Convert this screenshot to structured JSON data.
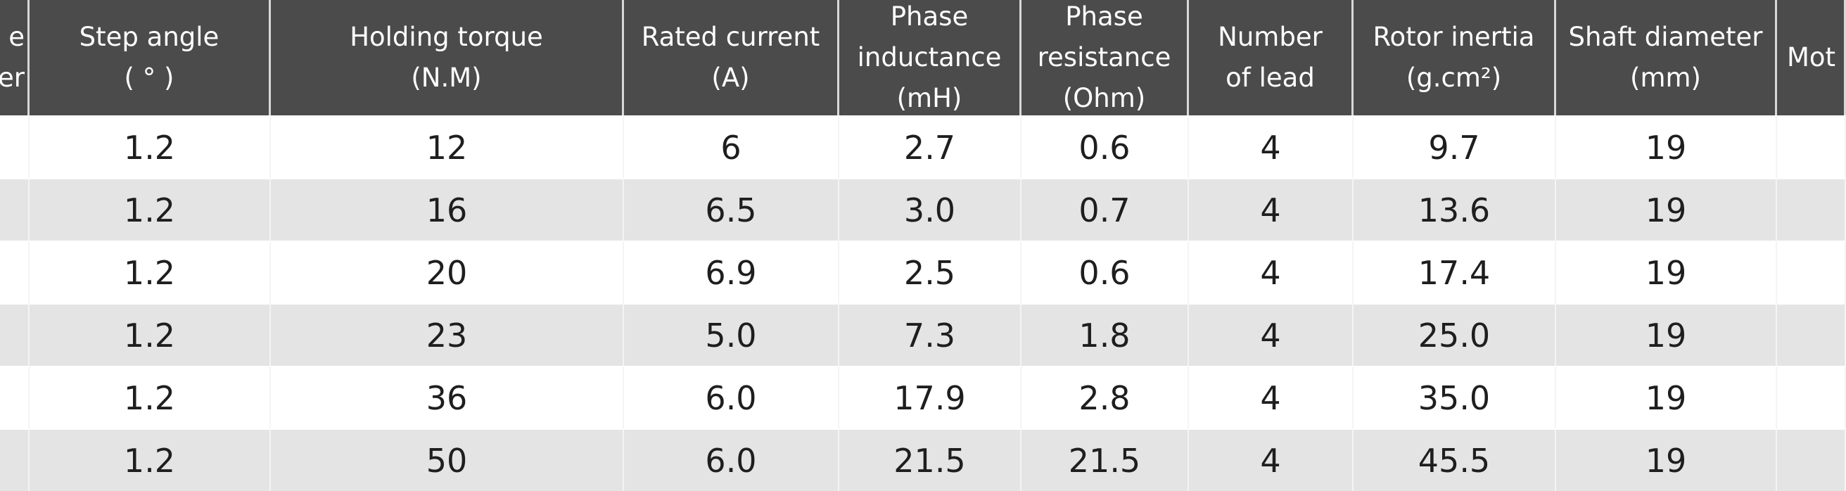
{
  "table": {
    "headers": [
      [
        "e",
        "er"
      ],
      [
        "Step angle",
        "( ° )"
      ],
      [
        "Holding torque",
        "(N.M)"
      ],
      [
        "Rated current",
        "(A)"
      ],
      [
        "Phase",
        "inductance",
        "(mH)"
      ],
      [
        "Phase",
        "resistance",
        "(Ohm)"
      ],
      [
        "Number",
        "of lead"
      ],
      [
        "Rotor inertia",
        "(g.cm²)"
      ],
      [
        "Shaft diameter",
        "(mm)"
      ],
      [
        "Mot"
      ]
    ],
    "rows": [
      [
        "1.2",
        "12",
        "6",
        "2.7",
        "0.6",
        "4",
        "9.7",
        "19"
      ],
      [
        "1.2",
        "16",
        "6.5",
        "3.0",
        "0.7",
        "4",
        "13.6",
        "19"
      ],
      [
        "1.2",
        "20",
        "6.9",
        "2.5",
        "0.6",
        "4",
        "17.4",
        "19"
      ],
      [
        "1.2",
        "23",
        "5.0",
        "7.3",
        "1.8",
        "4",
        "25.0",
        "19"
      ],
      [
        "1.2",
        "36",
        "6.0",
        "17.9",
        "2.8",
        "4",
        "35.0",
        "19"
      ],
      [
        "1.2",
        "50",
        "6.0",
        "21.5",
        "21.5",
        "4",
        "45.5",
        "19"
      ]
    ]
  }
}
